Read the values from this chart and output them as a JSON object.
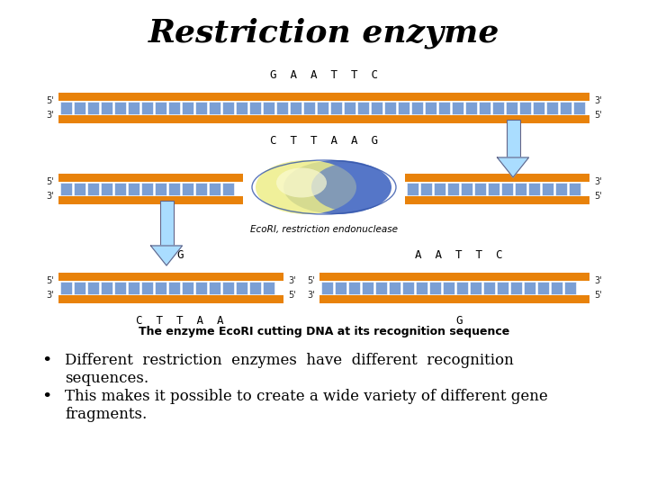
{
  "title": "Restriction enzyme",
  "caption": "The enzyme EcoRI cutting DNA at its recognition sequence",
  "caption_fontsize": 9,
  "bullet1_line1": "Different  restriction  enzymes  have  different  recognition",
  "bullet1_line2": "sequences.",
  "bullet2_line1": "This makes it possible to create a wide variety of different gene",
  "bullet2_line2": "fragments.",
  "bullet_fontsize": 12,
  "bg_color": "#ffffff",
  "orange_color": "#E8820A",
  "orange_dark": "#CC6600",
  "blue_tile": "#7B9FD4",
  "arrow_color": "#AADDFF",
  "arrow_edge": "#666688"
}
